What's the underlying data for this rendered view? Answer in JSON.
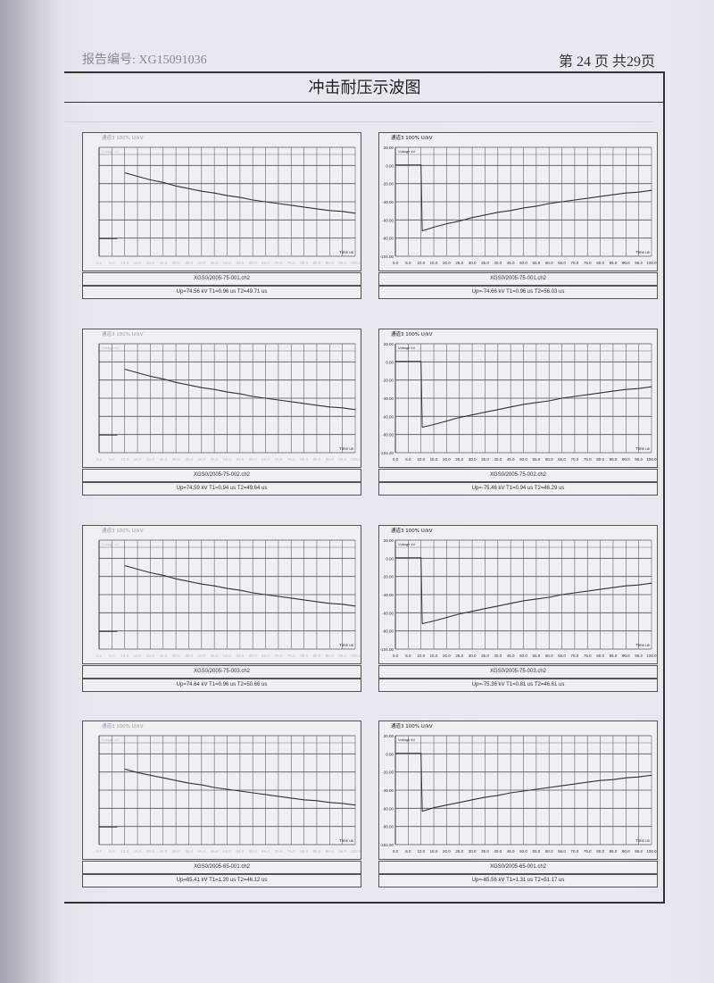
{
  "header": {
    "report_no": "报告编号: XG15091036",
    "page": "第 24 页 共29页"
  },
  "title": "冲击耐压示波图",
  "chart_data": [
    {
      "type": "line",
      "position": "row1-left",
      "polarity": "positive",
      "channel_label": "通道3 100% U/kV",
      "unit_label": "Voltage kV",
      "xlabel": "Time us",
      "xlim": [
        0,
        100
      ],
      "x_ticks": [
        "0.0",
        "5.0",
        "10.0",
        "15.0",
        "20.0",
        "25.0",
        "30.0",
        "35.0",
        "40.0",
        "45.0",
        "50.0",
        "55.0",
        "60.0",
        "65.0",
        "70.0",
        "75.0",
        "80.0",
        "85.0",
        "90.0",
        "95.0",
        "100.0"
      ],
      "ylim": [
        -20,
        104
      ],
      "y_ticks": [],
      "grid": true,
      "color": "#333333",
      "file": "XGS0/2005-75-001.ch2",
      "params": "Up=74.56 kV  T1=0.96 us  T2=49.71 us",
      "x": [
        0,
        5,
        7,
        10,
        15,
        20,
        25,
        30,
        35,
        40,
        45,
        50,
        55,
        60,
        65,
        70,
        75,
        80,
        85,
        90,
        95,
        100
      ],
      "y": [
        0,
        0,
        0,
        75,
        71,
        67,
        64,
        60,
        57,
        54,
        52,
        49,
        47,
        44,
        42,
        40,
        38,
        36,
        34,
        32,
        31,
        29
      ]
    },
    {
      "type": "line",
      "position": "row1-right",
      "polarity": "negative",
      "channel_label": "通道3 100% U/kV",
      "unit_label": "Voltage kV",
      "xlabel": "Time us",
      "xlim": [
        0,
        100
      ],
      "x_ticks": [
        "0.0",
        "5.0",
        "10.0",
        "15.0",
        "20.0",
        "25.0",
        "30.0",
        "35.0",
        "40.0",
        "45.0",
        "50.0",
        "55.0",
        "60.0",
        "65.0",
        "70.0",
        "75.0",
        "80.0",
        "85.0",
        "90.0",
        "95.0",
        "100.0"
      ],
      "ylim": [
        -104,
        20
      ],
      "y_ticks": [
        "20.00",
        "0.00",
        "-20.00",
        "-40.00",
        "-60.00",
        "-80.00",
        "-104.00"
      ],
      "grid": true,
      "color": "#333333",
      "file": "XGS0/2005-75-001.ch2",
      "params": "Up=-74.66 kV  T1=0.96 us  T2=56.03 us",
      "x": [
        0,
        5,
        10,
        10.5,
        15,
        20,
        25,
        30,
        35,
        40,
        45,
        50,
        55,
        60,
        65,
        70,
        75,
        80,
        85,
        90,
        95,
        100
      ],
      "y": [
        0,
        0,
        0,
        -75,
        -71,
        -67,
        -64,
        -60,
        -57,
        -54,
        -52,
        -49,
        -47,
        -44,
        -42,
        -40,
        -38,
        -36,
        -34,
        -32,
        -31,
        -29
      ]
    },
    {
      "type": "line",
      "position": "row2-left",
      "polarity": "positive",
      "channel_label": "通道3 100% U/kV",
      "unit_label": "Voltage kV",
      "xlabel": "Time us",
      "xlim": [
        0,
        100
      ],
      "x_ticks": [
        "0.0",
        "5.0",
        "10.0",
        "15.0",
        "20.0",
        "25.0",
        "30.0",
        "35.0",
        "40.0",
        "45.0",
        "50.0",
        "55.0",
        "60.0",
        "65.0",
        "70.0",
        "75.0",
        "80.0",
        "85.0",
        "90.0",
        "95.0",
        "100.0"
      ],
      "ylim": [
        -20,
        104
      ],
      "y_ticks": [],
      "grid": true,
      "color": "#333333",
      "file": "XGS0/2005-75-002.ch2",
      "params": "Up=74.59 kV  T1=0.94 us  T2=49.64 us",
      "x": [
        0,
        5,
        7,
        10,
        15,
        20,
        25,
        30,
        35,
        40,
        45,
        50,
        55,
        60,
        65,
        70,
        75,
        80,
        85,
        90,
        95,
        100
      ],
      "y": [
        0,
        0,
        0,
        75,
        71,
        67,
        64,
        60,
        57,
        54,
        52,
        49,
        47,
        44,
        42,
        40,
        38,
        36,
        34,
        32,
        31,
        29
      ]
    },
    {
      "type": "line",
      "position": "row2-right",
      "polarity": "negative",
      "channel_label": "通道3 100% U/kV",
      "unit_label": "Voltage kV",
      "xlabel": "Time us",
      "xlim": [
        0,
        100
      ],
      "x_ticks": [
        "0.0",
        "5.0",
        "10.0",
        "15.0",
        "20.0",
        "25.0",
        "30.0",
        "35.0",
        "40.0",
        "45.0",
        "50.0",
        "55.0",
        "60.0",
        "65.0",
        "70.0",
        "75.0",
        "80.0",
        "85.0",
        "90.0",
        "95.0",
        "100.0"
      ],
      "ylim": [
        -104,
        20
      ],
      "y_ticks": [
        "20.00",
        "0.00",
        "-20.00",
        "-40.00",
        "-60.00",
        "-80.00",
        "-104.00"
      ],
      "grid": true,
      "color": "#333333",
      "file": "XGS0/2005-75-002.ch2",
      "params": "Up=-75.46 kV  T1=0.94 us  T2=46.29 us",
      "x": [
        0,
        5,
        10,
        10.5,
        15,
        20,
        25,
        30,
        35,
        40,
        45,
        50,
        55,
        60,
        65,
        70,
        75,
        80,
        85,
        90,
        95,
        100
      ],
      "y": [
        0,
        0,
        0,
        -75,
        -72,
        -68,
        -64,
        -61,
        -58,
        -55,
        -52,
        -49,
        -47,
        -45,
        -42,
        -40,
        -38,
        -36,
        -34,
        -32,
        -31,
        -29
      ]
    },
    {
      "type": "line",
      "position": "row3-left",
      "polarity": "positive",
      "channel_label": "通道3 100% U/kV",
      "unit_label": "Voltage kV",
      "xlabel": "Time us",
      "xlim": [
        0,
        100
      ],
      "x_ticks": [
        "0.0",
        "5.0",
        "10.0",
        "15.0",
        "20.0",
        "25.0",
        "30.0",
        "35.0",
        "40.0",
        "45.0",
        "50.0",
        "55.0",
        "60.0",
        "65.0",
        "70.0",
        "75.0",
        "80.0",
        "85.0",
        "90.0",
        "95.0",
        "100.0"
      ],
      "ylim": [
        -20,
        104
      ],
      "y_ticks": [],
      "grid": true,
      "color": "#333333",
      "file": "XGS0/2005-75-003.ch2",
      "params": "Up=74.64 kV  T1=0.96 us  T2=50.66 us",
      "x": [
        0,
        5,
        7,
        10,
        15,
        20,
        25,
        30,
        35,
        40,
        45,
        50,
        55,
        60,
        65,
        70,
        75,
        80,
        85,
        90,
        95,
        100
      ],
      "y": [
        0,
        0,
        0,
        75,
        71,
        67,
        64,
        60,
        57,
        54,
        52,
        49,
        47,
        44,
        42,
        40,
        38,
        36,
        34,
        32,
        31,
        29
      ]
    },
    {
      "type": "line",
      "position": "row3-right",
      "polarity": "negative",
      "channel_label": "通道3 100% U/kV",
      "unit_label": "Voltage kV",
      "xlabel": "Time us",
      "xlim": [
        0,
        100
      ],
      "x_ticks": [
        "0.0",
        "5.0",
        "10.0",
        "15.0",
        "20.0",
        "25.0",
        "30.0",
        "35.0",
        "40.0",
        "45.0",
        "50.0",
        "55.0",
        "60.0",
        "65.0",
        "70.0",
        "75.0",
        "80.0",
        "85.0",
        "90.0",
        "95.0",
        "100.0"
      ],
      "ylim": [
        -104,
        20
      ],
      "y_ticks": [
        "20.00",
        "0.00",
        "-20.00",
        "-40.00",
        "-60.00",
        "-80.00",
        "-104.00"
      ],
      "grid": true,
      "color": "#333333",
      "file": "XGS0/2005-75-003.ch2",
      "params": "Up=-75.36 kV  T1=0.81 us  T2=46.61 us",
      "x": [
        0,
        5,
        10,
        10.5,
        15,
        20,
        25,
        30,
        35,
        40,
        45,
        50,
        55,
        60,
        65,
        70,
        75,
        80,
        85,
        90,
        95,
        100
      ],
      "y": [
        0,
        0,
        0,
        -75,
        -72,
        -68,
        -64,
        -61,
        -58,
        -55,
        -52,
        -49,
        -47,
        -45,
        -42,
        -40,
        -38,
        -36,
        -34,
        -32,
        -31,
        -29
      ]
    },
    {
      "type": "line",
      "position": "row4-left",
      "polarity": "positive",
      "channel_label": "通道3 100% U/kV",
      "unit_label": "Voltage kV",
      "xlabel": "Time us",
      "xlim": [
        0,
        100
      ],
      "x_ticks": [
        "0.0",
        "5.0",
        "10.0",
        "15.0",
        "20.0",
        "25.0",
        "30.0",
        "35.0",
        "40.0",
        "45.0",
        "50.0",
        "55.0",
        "60.0",
        "65.0",
        "70.0",
        "75.0",
        "80.0",
        "85.0",
        "90.0",
        "95.0",
        "100.0"
      ],
      "ylim": [
        -20,
        104
      ],
      "y_ticks": [],
      "grid": true,
      "color": "#333333",
      "file": "XGS0/2005-65-001.ch2",
      "params": "Up=65.41 kV  T1=1.20 us  T2=46.12 us",
      "x": [
        0,
        5,
        7,
        10,
        15,
        20,
        25,
        30,
        35,
        40,
        45,
        50,
        55,
        60,
        65,
        70,
        75,
        80,
        85,
        90,
        95,
        100
      ],
      "y": [
        0,
        0,
        0,
        66,
        62,
        59,
        56,
        53,
        50,
        48,
        45,
        43,
        41,
        39,
        37,
        35,
        33,
        31,
        30,
        28,
        27,
        25
      ]
    },
    {
      "type": "line",
      "position": "row4-right",
      "polarity": "negative",
      "channel_label": "通道3 100% U/kV",
      "unit_label": "Voltage kV",
      "xlabel": "Time us",
      "xlim": [
        0,
        100
      ],
      "x_ticks": [
        "0.0",
        "5.0",
        "10.0",
        "15.0",
        "20.0",
        "25.0",
        "30.0",
        "35.0",
        "40.0",
        "45.0",
        "50.0",
        "55.0",
        "60.0",
        "65.0",
        "70.0",
        "75.0",
        "80.0",
        "85.0",
        "90.0",
        "95.0",
        "100.0"
      ],
      "ylim": [
        -104,
        20
      ],
      "y_ticks": [
        "20.00",
        "0.00",
        "-20.00",
        "-40.00",
        "-60.00",
        "-80.00",
        "-104.00"
      ],
      "grid": true,
      "color": "#333333",
      "file": "XGS0/2005-65-001.ch2",
      "params": "Up=-65.56 kV  T1=1.31 us  T2=51.17 us",
      "x": [
        0,
        5,
        10,
        10.5,
        15,
        20,
        25,
        30,
        35,
        40,
        45,
        50,
        55,
        60,
        65,
        70,
        75,
        80,
        85,
        90,
        95,
        100
      ],
      "y": [
        0,
        0,
        0,
        -66,
        -62,
        -59,
        -56,
        -53,
        -50,
        -48,
        -45,
        -43,
        -41,
        -39,
        -37,
        -35,
        -33,
        -31,
        -30,
        -28,
        -27,
        -25
      ]
    }
  ]
}
